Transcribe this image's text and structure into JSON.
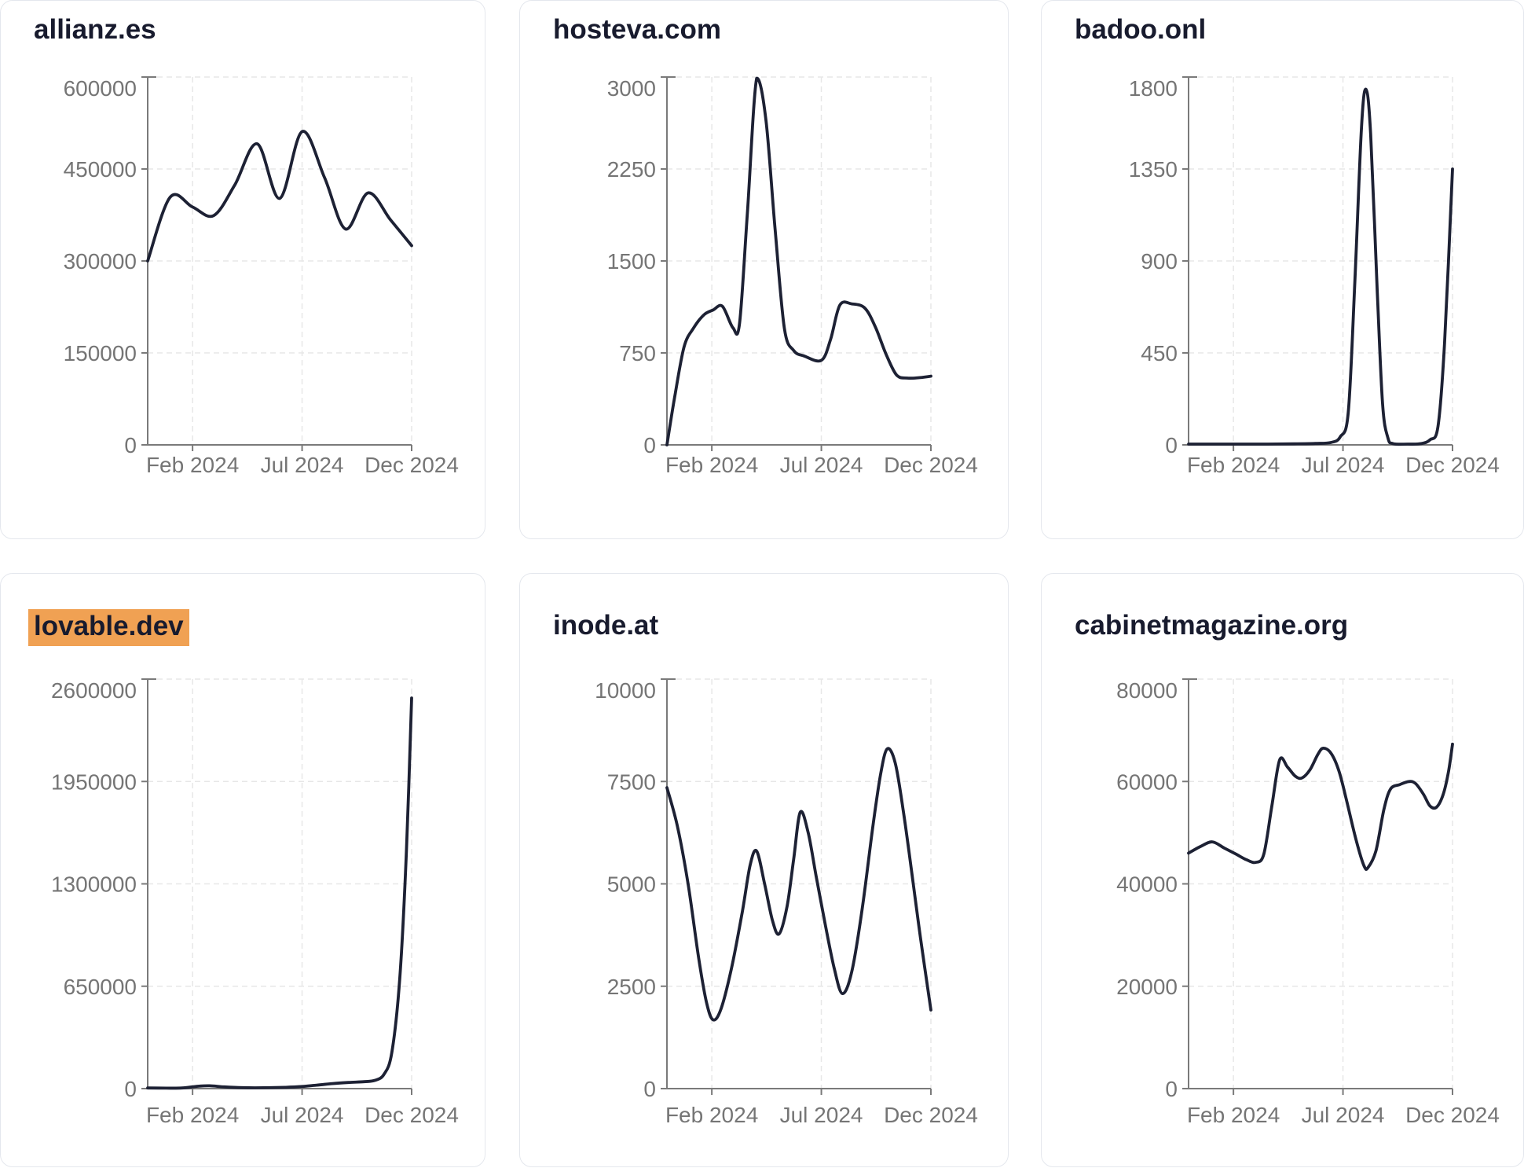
{
  "page": {
    "background": "#ffffff",
    "accent_line_color": "#1d2134",
    "axis_color": "#7a7a7a",
    "tick_label_color": "#757575",
    "grid_color": "#e7e7e7",
    "title_color": "#181b2e",
    "card_border_color": "#e4e7ed"
  },
  "chart_data": [
    {
      "type": "line",
      "title": "allianz.es",
      "title_highlighted": false,
      "ylim": [
        0,
        600000
      ],
      "yticks": [
        0,
        150000,
        300000,
        450000,
        600000
      ],
      "x_ticks": [
        {
          "label": "Feb 2024",
          "pos": 0.17
        },
        {
          "label": "Jul 2024",
          "pos": 0.585
        },
        {
          "label": "Dec 2024",
          "pos": 1.0
        }
      ],
      "grid": true,
      "points": [
        [
          0,
          300000
        ],
        [
          0.085,
          404000
        ],
        [
          0.17,
          388000
        ],
        [
          0.25,
          374000
        ],
        [
          0.33,
          424000
        ],
        [
          0.415,
          491000
        ],
        [
          0.5,
          402000
        ],
        [
          0.585,
          511000
        ],
        [
          0.67,
          436000
        ],
        [
          0.75,
          352000
        ],
        [
          0.835,
          411000
        ],
        [
          0.92,
          367000
        ],
        [
          1,
          325000
        ]
      ]
    },
    {
      "type": "line",
      "title": "hosteva.com",
      "title_highlighted": false,
      "ylim": [
        0,
        3000
      ],
      "yticks": [
        0,
        750,
        1500,
        2250,
        3000
      ],
      "x_ticks": [
        {
          "label": "Feb 2024",
          "pos": 0.17
        },
        {
          "label": "Jul 2024",
          "pos": 0.585
        },
        {
          "label": "Dec 2024",
          "pos": 1.0
        }
      ],
      "grid": true,
      "points": [
        [
          0,
          0
        ],
        [
          0.03,
          400
        ],
        [
          0.065,
          800
        ],
        [
          0.1,
          950
        ],
        [
          0.14,
          1060
        ],
        [
          0.175,
          1100
        ],
        [
          0.21,
          1130
        ],
        [
          0.25,
          955
        ],
        [
          0.275,
          990
        ],
        [
          0.305,
          1900
        ],
        [
          0.34,
          2990
        ],
        [
          0.375,
          2650
        ],
        [
          0.41,
          1750
        ],
        [
          0.445,
          950
        ],
        [
          0.48,
          770
        ],
        [
          0.52,
          725
        ],
        [
          0.585,
          690
        ],
        [
          0.62,
          860
        ],
        [
          0.655,
          1140
        ],
        [
          0.7,
          1150
        ],
        [
          0.75,
          1115
        ],
        [
          0.79,
          960
        ],
        [
          0.83,
          740
        ],
        [
          0.87,
          570
        ],
        [
          0.91,
          545
        ],
        [
          0.955,
          548
        ],
        [
          1,
          560
        ]
      ]
    },
    {
      "type": "line",
      "title": "badoo.onl",
      "title_highlighted": false,
      "ylim": [
        0,
        1800
      ],
      "yticks": [
        0,
        450,
        900,
        1350,
        1800
      ],
      "x_ticks": [
        {
          "label": "Feb 2024",
          "pos": 0.17
        },
        {
          "label": "Jul 2024",
          "pos": 0.585
        },
        {
          "label": "Dec 2024",
          "pos": 1.0
        }
      ],
      "grid": true,
      "points": [
        [
          0,
          4
        ],
        [
          0.1,
          4
        ],
        [
          0.2,
          4
        ],
        [
          0.3,
          4
        ],
        [
          0.4,
          5
        ],
        [
          0.48,
          7
        ],
        [
          0.54,
          12
        ],
        [
          0.575,
          40
        ],
        [
          0.605,
          160
        ],
        [
          0.63,
          800
        ],
        [
          0.655,
          1550
        ],
        [
          0.672,
          1740
        ],
        [
          0.69,
          1520
        ],
        [
          0.715,
          750
        ],
        [
          0.735,
          200
        ],
        [
          0.755,
          35
        ],
        [
          0.775,
          6
        ],
        [
          0.83,
          4
        ],
        [
          0.88,
          6
        ],
        [
          0.915,
          25
        ],
        [
          0.945,
          90
        ],
        [
          0.97,
          500
        ],
        [
          1,
          1350
        ]
      ]
    },
    {
      "type": "line",
      "title": "lovable.dev",
      "title_highlighted": true,
      "highlight_color": "#f0a153",
      "ylim": [
        0,
        2600000
      ],
      "yticks": [
        0,
        650000,
        1300000,
        1950000,
        2600000
      ],
      "x_ticks": [
        {
          "label": "Feb 2024",
          "pos": 0.17
        },
        {
          "label": "Jul 2024",
          "pos": 0.585
        },
        {
          "label": "Dec 2024",
          "pos": 1.0
        }
      ],
      "grid": true,
      "points": [
        [
          0,
          4000
        ],
        [
          0.07,
          3000
        ],
        [
          0.13,
          4000
        ],
        [
          0.19,
          15000
        ],
        [
          0.235,
          18000
        ],
        [
          0.29,
          11000
        ],
        [
          0.36,
          6000
        ],
        [
          0.44,
          5500
        ],
        [
          0.52,
          8000
        ],
        [
          0.58,
          13000
        ],
        [
          0.64,
          22000
        ],
        [
          0.7,
          32000
        ],
        [
          0.76,
          39000
        ],
        [
          0.82,
          44000
        ],
        [
          0.86,
          52000
        ],
        [
          0.895,
          90000
        ],
        [
          0.925,
          230000
        ],
        [
          0.955,
          700000
        ],
        [
          0.98,
          1500000
        ],
        [
          1,
          2480000
        ]
      ]
    },
    {
      "type": "line",
      "title": "inode.at",
      "title_highlighted": false,
      "ylim": [
        0,
        10000
      ],
      "yticks": [
        0,
        2500,
        5000,
        7500,
        10000
      ],
      "x_ticks": [
        {
          "label": "Feb 2024",
          "pos": 0.17
        },
        {
          "label": "Jul 2024",
          "pos": 0.585
        },
        {
          "label": "Dec 2024",
          "pos": 1.0
        }
      ],
      "grid": true,
      "points": [
        [
          0,
          7350
        ],
        [
          0.04,
          6400
        ],
        [
          0.08,
          5000
        ],
        [
          0.12,
          3200
        ],
        [
          0.15,
          2100
        ],
        [
          0.175,
          1680
        ],
        [
          0.205,
          1950
        ],
        [
          0.245,
          2950
        ],
        [
          0.285,
          4300
        ],
        [
          0.315,
          5450
        ],
        [
          0.34,
          5800
        ],
        [
          0.37,
          5000
        ],
        [
          0.4,
          4100
        ],
        [
          0.425,
          3780
        ],
        [
          0.455,
          4450
        ],
        [
          0.48,
          5600
        ],
        [
          0.505,
          6750
        ],
        [
          0.535,
          6250
        ],
        [
          0.565,
          5200
        ],
        [
          0.6,
          4000
        ],
        [
          0.635,
          2900
        ],
        [
          0.665,
          2320
        ],
        [
          0.7,
          2850
        ],
        [
          0.74,
          4400
        ],
        [
          0.78,
          6400
        ],
        [
          0.81,
          7700
        ],
        [
          0.835,
          8300
        ],
        [
          0.865,
          7950
        ],
        [
          0.895,
          6800
        ],
        [
          0.925,
          5400
        ],
        [
          0.96,
          3700
        ],
        [
          1,
          1920
        ]
      ]
    },
    {
      "type": "line",
      "title": "cabinetmagazine.org",
      "title_highlighted": false,
      "ylim": [
        0,
        80000
      ],
      "yticks": [
        0,
        20000,
        40000,
        60000,
        80000
      ],
      "x_ticks": [
        {
          "label": "Feb 2024",
          "pos": 0.17
        },
        {
          "label": "Jul 2024",
          "pos": 0.585
        },
        {
          "label": "Dec 2024",
          "pos": 1.0
        }
      ],
      "grid": true,
      "points": [
        [
          0,
          46000
        ],
        [
          0.045,
          47300
        ],
        [
          0.09,
          48200
        ],
        [
          0.135,
          47000
        ],
        [
          0.18,
          45800
        ],
        [
          0.22,
          44700
        ],
        [
          0.255,
          44200
        ],
        [
          0.285,
          45800
        ],
        [
          0.315,
          55000
        ],
        [
          0.345,
          64200
        ],
        [
          0.375,
          62800
        ],
        [
          0.405,
          61000
        ],
        [
          0.43,
          60700
        ],
        [
          0.46,
          62300
        ],
        [
          0.49,
          65300
        ],
        [
          0.51,
          66500
        ],
        [
          0.54,
          65500
        ],
        [
          0.57,
          62000
        ],
        [
          0.6,
          56000
        ],
        [
          0.635,
          48500
        ],
        [
          0.665,
          43500
        ],
        [
          0.68,
          43200
        ],
        [
          0.71,
          46500
        ],
        [
          0.74,
          54500
        ],
        [
          0.765,
          58500
        ],
        [
          0.8,
          59400
        ],
        [
          0.835,
          60000
        ],
        [
          0.86,
          59600
        ],
        [
          0.89,
          57500
        ],
        [
          0.915,
          55200
        ],
        [
          0.94,
          55000
        ],
        [
          0.965,
          57500
        ],
        [
          0.985,
          62000
        ],
        [
          1,
          67300
        ]
      ]
    }
  ]
}
